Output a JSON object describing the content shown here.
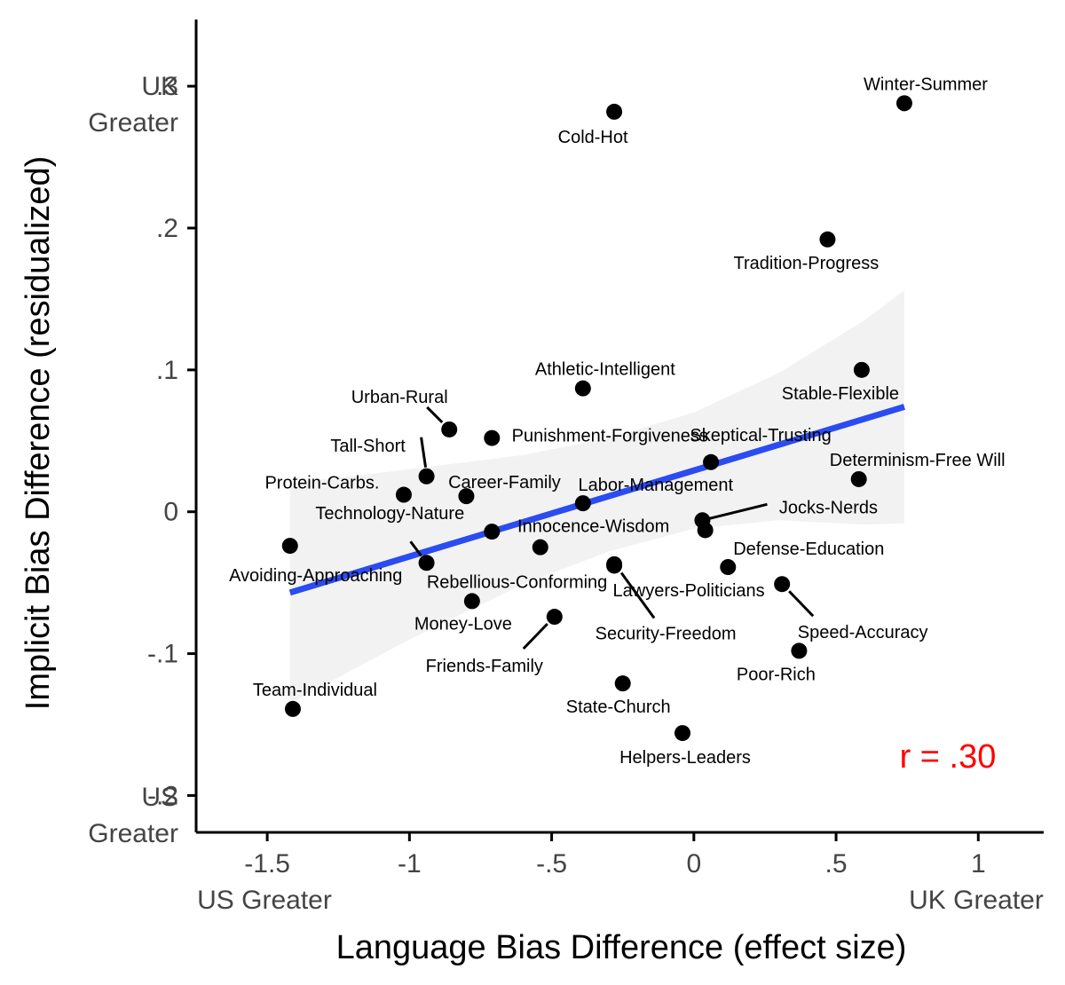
{
  "chart_data": {
    "type": "scatter",
    "xlabel": "Language Bias Difference (effect size)",
    "ylabel": "Implicit Bias Difference (residualized)",
    "xlim": [
      -1.75,
      1.23
    ],
    "ylim": [
      -0.226,
      0.347
    ],
    "x_ticks": [
      {
        "value": -1.5,
        "label": "-1.5"
      },
      {
        "value": -1.0,
        "label": "-1"
      },
      {
        "value": -0.5,
        "label": "-.5"
      },
      {
        "value": 0.0,
        "label": "0"
      },
      {
        "value": 0.5,
        "label": ".5"
      },
      {
        "value": 1.0,
        "label": "1"
      }
    ],
    "y_ticks": [
      {
        "value": 0.3,
        "label": ".3"
      },
      {
        "value": 0.2,
        "label": ".2"
      },
      {
        "value": 0.1,
        "label": ".1"
      },
      {
        "value": 0.0,
        "label": "0"
      },
      {
        "value": -0.1,
        "label": "-.1"
      },
      {
        "value": -0.2,
        "label": "-.2"
      }
    ],
    "x_end_labels": {
      "left": "US Greater",
      "right": "UK Greater"
    },
    "y_end_labels": {
      "top": [
        "UK",
        "Greater"
      ],
      "bottom": [
        "US",
        "Greater"
      ]
    },
    "grid": false,
    "points": [
      {
        "label": "Winter-Summer",
        "x": 0.74,
        "y": 0.288
      },
      {
        "label": "Cold-Hot",
        "x": -0.28,
        "y": 0.282
      },
      {
        "label": "Tradition-Progress",
        "x": 0.47,
        "y": 0.192
      },
      {
        "label": "Stable-Flexible",
        "x": 0.59,
        "y": 0.1
      },
      {
        "label": "Athletic-Intelligent",
        "x": -0.39,
        "y": 0.087
      },
      {
        "label": "Urban-Rural",
        "x": -0.86,
        "y": 0.058
      },
      {
        "label": "Punishment-Forgiveness",
        "x": -0.71,
        "y": 0.052
      },
      {
        "label": "Skeptical-Trusting",
        "x": 0.06,
        "y": 0.035
      },
      {
        "label": "Tall-Short",
        "x": -0.94,
        "y": 0.025
      },
      {
        "label": "Determinism-Free Will",
        "x": 0.58,
        "y": 0.023
      },
      {
        "label": "Protein-Carbs.",
        "x": -1.02,
        "y": 0.012
      },
      {
        "label": "Career-Family",
        "x": -0.8,
        "y": 0.011
      },
      {
        "label": "Labor-Management",
        "x": -0.39,
        "y": 0.006
      },
      {
        "label": "Jocks-Nerds",
        "x": 0.03,
        "y": -0.006
      },
      {
        "label": "Innocence-Wisdom",
        "x": 0.04,
        "y": -0.013
      },
      {
        "label": "Technology-Nature",
        "x": -0.71,
        "y": -0.014
      },
      {
        "label": "Avoiding-Approaching",
        "x": -1.42,
        "y": -0.024
      },
      {
        "label": "",
        "x": -0.54,
        "y": -0.025
      },
      {
        "label": "Rebellious-Conforming",
        "x": -0.94,
        "y": -0.036
      },
      {
        "label": "Lawyers-Politicians",
        "x": -0.28,
        "y": -0.037
      },
      {
        "label": "Defense-Education",
        "x": 0.12,
        "y": -0.039
      },
      {
        "label": "Speed-Accuracy",
        "x": 0.31,
        "y": -0.051
      },
      {
        "label": "Money-Love",
        "x": -0.78,
        "y": -0.063
      },
      {
        "label": "Friends-Family",
        "x": -0.49,
        "y": -0.074
      },
      {
        "label": "Security-Freedom",
        "x": -0.28,
        "y": -0.038
      },
      {
        "label": "Poor-Rich",
        "x": 0.37,
        "y": -0.098
      },
      {
        "label": "State-Church",
        "x": -0.25,
        "y": -0.121
      },
      {
        "label": "Team-Individual",
        "x": -1.41,
        "y": -0.139
      },
      {
        "label": "Helpers-Leaders",
        "x": -0.04,
        "y": -0.156
      }
    ],
    "regression": {
      "x0": -1.42,
      "y0": -0.057,
      "x1": 0.74,
      "y1": 0.074
    },
    "confidence_band": {
      "x": [
        -1.42,
        -1.0,
        -0.6,
        -0.3,
        0.0,
        0.3,
        0.6,
        0.74
      ],
      "upper": [
        0.02,
        0.03,
        0.04,
        0.052,
        0.07,
        0.098,
        0.135,
        0.156
      ],
      "lower": [
        -0.135,
        -0.09,
        -0.051,
        -0.028,
        -0.012,
        -0.006,
        -0.009,
        -0.008
      ]
    },
    "annotation": {
      "text": "r = .30",
      "color": "#ff0000",
      "position": "bottom-right"
    },
    "colors": {
      "points": "#000000",
      "regression_line": "#2a4cf0",
      "confidence_band": "#f2f2f2",
      "axis": "#000000",
      "tick_text": "#444444"
    }
  }
}
